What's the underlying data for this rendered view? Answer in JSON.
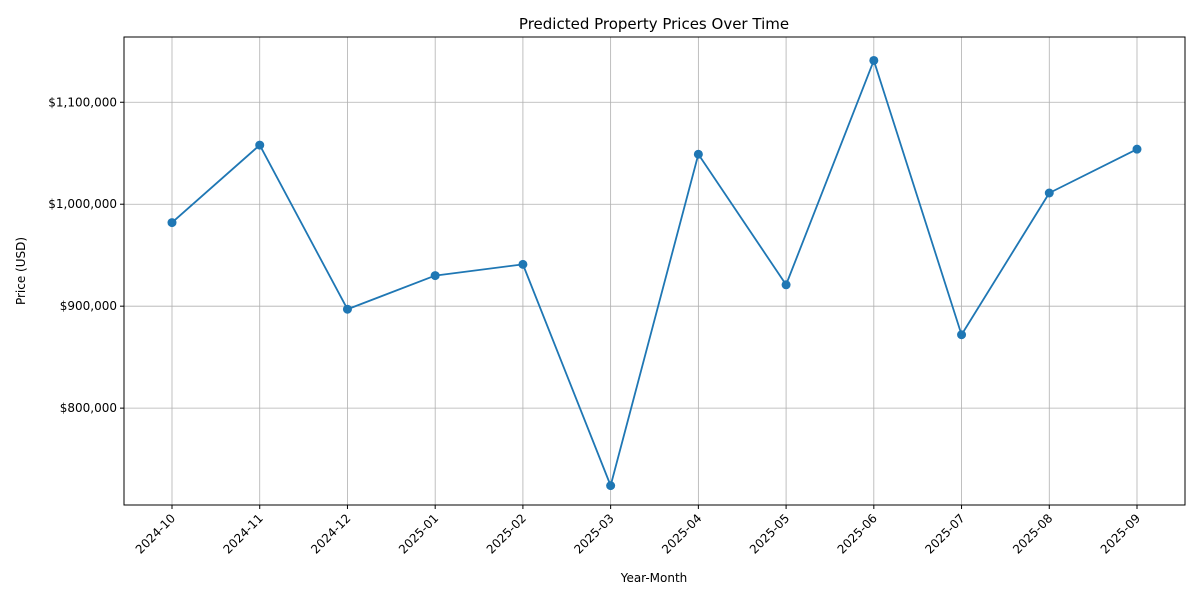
{
  "chart_data": {
    "type": "line",
    "title": "Predicted Property Prices Over Time",
    "xlabel": "Year-Month",
    "ylabel": "Price (USD)",
    "categories": [
      "2024-10",
      "2024-11",
      "2024-12",
      "2025-01",
      "2025-02",
      "2025-03",
      "2025-04",
      "2025-05",
      "2025-06",
      "2025-07",
      "2025-08",
      "2025-09"
    ],
    "series": [
      {
        "values": [
          982000,
          1058000,
          897000,
          930000,
          941000,
          724000,
          1049000,
          921000,
          1141000,
          872000,
          1011000,
          1054000
        ],
        "color": "#1f77b4",
        "marker": "circle"
      }
    ],
    "yticks": [
      800000,
      900000,
      1000000,
      1100000
    ],
    "ytick_labels": [
      "$800,000",
      "$900,000",
      "$1,000,000",
      "$1,100,000"
    ],
    "ylim": [
      705000,
      1164000
    ],
    "grid": true,
    "xtick_rotation": 45
  }
}
